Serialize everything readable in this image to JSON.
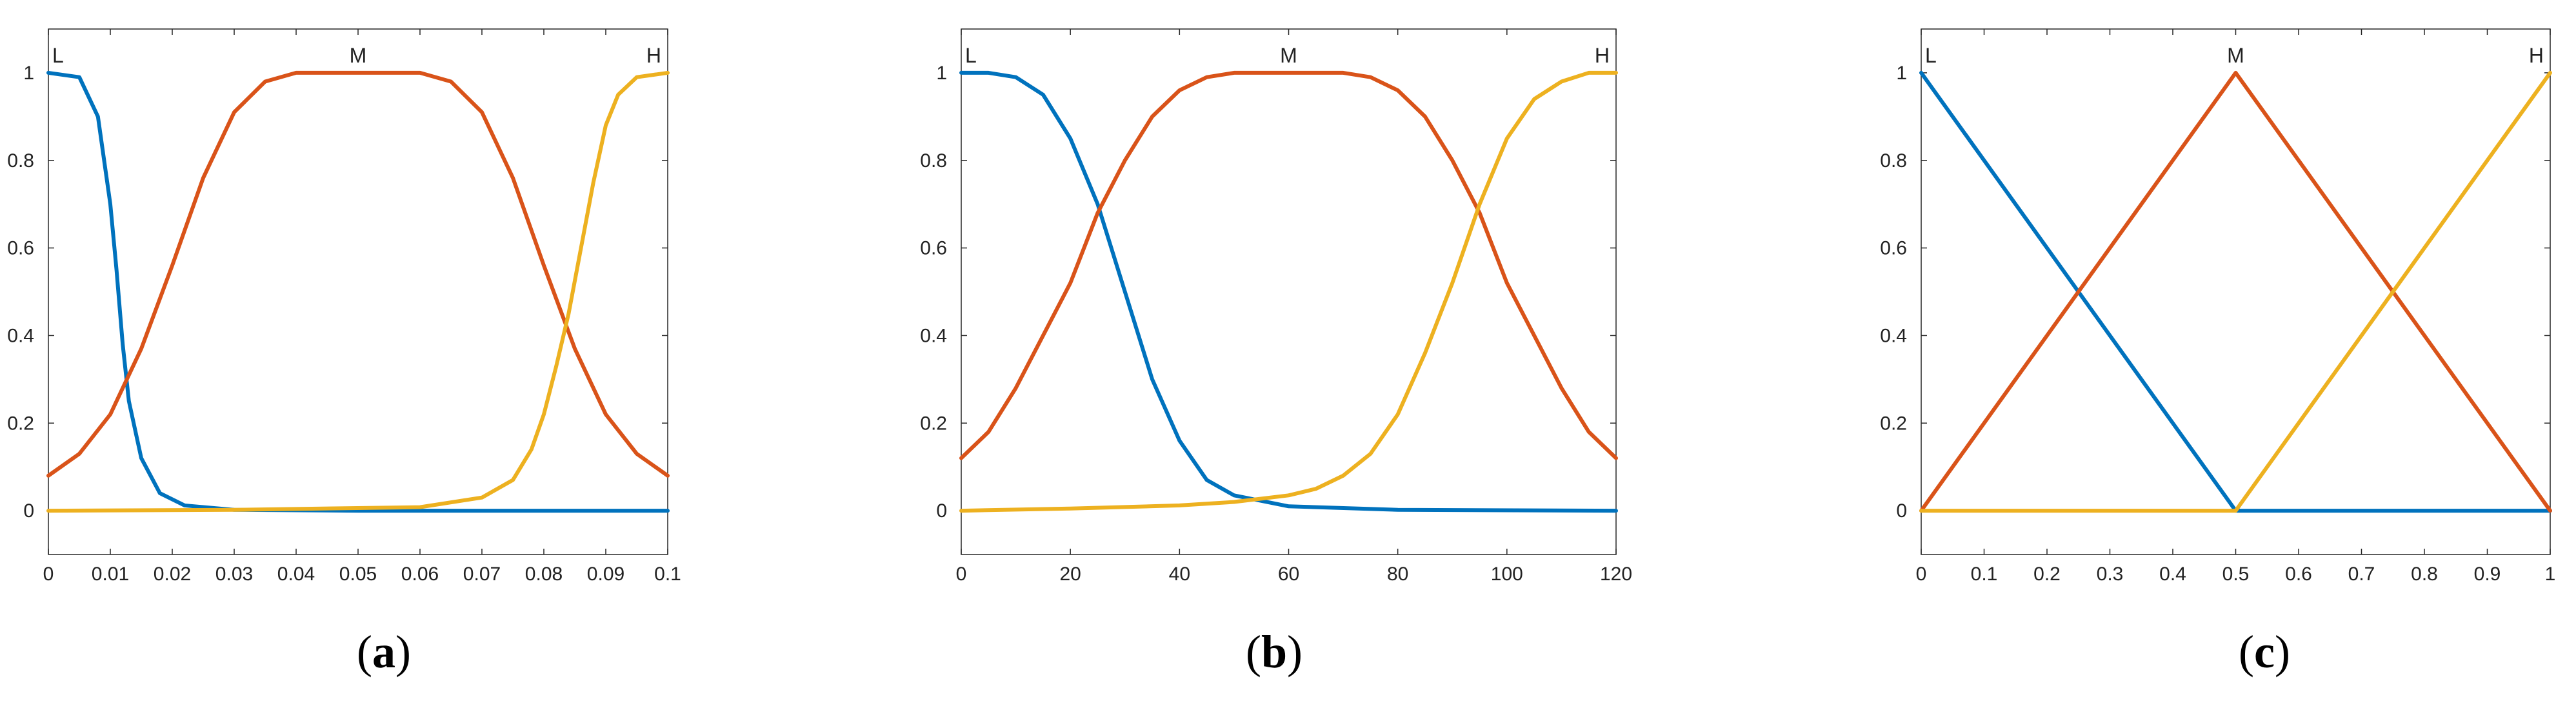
{
  "chart_data": [
    {
      "type": "line",
      "caption": "a",
      "xlim": [
        0,
        0.1
      ],
      "ylim": [
        -0.1,
        1.1
      ],
      "xticks": [
        0,
        0.01,
        0.02,
        0.03,
        0.04,
        0.05,
        0.06,
        0.07,
        0.08,
        0.09,
        0.1
      ],
      "xtick_labels": [
        "0",
        "0.01",
        "0.02",
        "0.03",
        "0.04",
        "0.05",
        "0.06",
        "0.07",
        "0.08",
        "0.09",
        "0.1"
      ],
      "yticks": [
        0,
        0.2,
        0.4,
        0.6,
        0.8,
        1
      ],
      "ytick_labels": [
        "0",
        "0.2",
        "0.4",
        "0.6",
        "0.8",
        "1"
      ],
      "grid": false,
      "series": [
        {
          "label": "L",
          "color": "#0072BD",
          "x": [
            0,
            0.005,
            0.008,
            0.01,
            0.011,
            0.012,
            0.013,
            0.015,
            0.018,
            0.022,
            0.03,
            0.05,
            0.1
          ],
          "y": [
            1,
            0.99,
            0.9,
            0.7,
            0.55,
            0.38,
            0.25,
            0.12,
            0.04,
            0.012,
            0.002,
            0,
            0
          ]
        },
        {
          "label": "M",
          "color": "#D95319",
          "x": [
            0,
            0.005,
            0.01,
            0.015,
            0.02,
            0.025,
            0.03,
            0.035,
            0.04,
            0.05,
            0.06,
            0.065,
            0.07,
            0.075,
            0.08,
            0.085,
            0.09,
            0.095,
            0.1
          ],
          "y": [
            0.08,
            0.13,
            0.22,
            0.37,
            0.56,
            0.76,
            0.91,
            0.98,
            1,
            1,
            1,
            0.98,
            0.91,
            0.76,
            0.56,
            0.37,
            0.22,
            0.13,
            0.08
          ]
        },
        {
          "label": "H",
          "color": "#EDB120",
          "x": [
            0,
            0.03,
            0.06,
            0.07,
            0.075,
            0.078,
            0.08,
            0.082,
            0.084,
            0.086,
            0.088,
            0.09,
            0.092,
            0.095,
            0.1
          ],
          "y": [
            0,
            0.002,
            0.008,
            0.03,
            0.07,
            0.14,
            0.22,
            0.33,
            0.45,
            0.6,
            0.75,
            0.88,
            0.95,
            0.99,
            1
          ]
        }
      ]
    },
    {
      "type": "line",
      "caption": "b",
      "xlim": [
        0,
        120
      ],
      "ylim": [
        -0.1,
        1.1
      ],
      "xticks": [
        0,
        20,
        40,
        60,
        80,
        100,
        120
      ],
      "xtick_labels": [
        "0",
        "20",
        "40",
        "60",
        "80",
        "100",
        "120"
      ],
      "yticks": [
        0,
        0.2,
        0.4,
        0.6,
        0.8,
        1
      ],
      "ytick_labels": [
        "0",
        "0.2",
        "0.4",
        "0.6",
        "0.8",
        "1"
      ],
      "grid": false,
      "series": [
        {
          "label": "L",
          "color": "#0072BD",
          "x": [
            0,
            5,
            10,
            15,
            20,
            25,
            30,
            35,
            40,
            45,
            50,
            60,
            80,
            120
          ],
          "y": [
            1,
            1,
            0.99,
            0.95,
            0.85,
            0.7,
            0.5,
            0.3,
            0.16,
            0.07,
            0.035,
            0.01,
            0.002,
            0
          ]
        },
        {
          "label": "M",
          "color": "#D95319",
          "x": [
            0,
            5,
            10,
            15,
            20,
            25,
            30,
            35,
            40,
            45,
            50,
            60,
            70,
            75,
            80,
            85,
            90,
            95,
            100,
            105,
            110,
            115,
            120
          ],
          "y": [
            0.12,
            0.18,
            0.28,
            0.4,
            0.52,
            0.68,
            0.8,
            0.9,
            0.96,
            0.99,
            1,
            1,
            1,
            0.99,
            0.96,
            0.9,
            0.8,
            0.68,
            0.52,
            0.4,
            0.28,
            0.18,
            0.12
          ]
        },
        {
          "label": "H",
          "color": "#EDB120",
          "x": [
            0,
            20,
            40,
            50,
            60,
            65,
            70,
            75,
            80,
            85,
            90,
            95,
            100,
            105,
            110,
            115,
            120
          ],
          "y": [
            0,
            0.005,
            0.012,
            0.02,
            0.035,
            0.05,
            0.08,
            0.13,
            0.22,
            0.36,
            0.52,
            0.7,
            0.85,
            0.94,
            0.98,
            1,
            1
          ]
        }
      ]
    },
    {
      "type": "line",
      "caption": "c",
      "xlim": [
        0,
        1
      ],
      "ylim": [
        -0.1,
        1.1
      ],
      "xticks": [
        0,
        0.1,
        0.2,
        0.3,
        0.4,
        0.5,
        0.6,
        0.7,
        0.8,
        0.9,
        1
      ],
      "xtick_labels": [
        "0",
        "0.1",
        "0.2",
        "0.3",
        "0.4",
        "0.5",
        "0.6",
        "0.7",
        "0.8",
        "0.9",
        "1"
      ],
      "yticks": [
        0,
        0.2,
        0.4,
        0.6,
        0.8,
        1
      ],
      "ytick_labels": [
        "0",
        "0.2",
        "0.4",
        "0.6",
        "0.8",
        "1"
      ],
      "grid": false,
      "series": [
        {
          "label": "L",
          "color": "#0072BD",
          "x": [
            0,
            0.5,
            1
          ],
          "y": [
            1,
            0,
            0
          ]
        },
        {
          "label": "M",
          "color": "#D95319",
          "x": [
            0,
            0.5,
            1
          ],
          "y": [
            0,
            1,
            0
          ]
        },
        {
          "label": "H",
          "color": "#EDB120",
          "x": [
            0,
            0.5,
            1
          ],
          "y": [
            0,
            0,
            1
          ]
        }
      ]
    }
  ]
}
